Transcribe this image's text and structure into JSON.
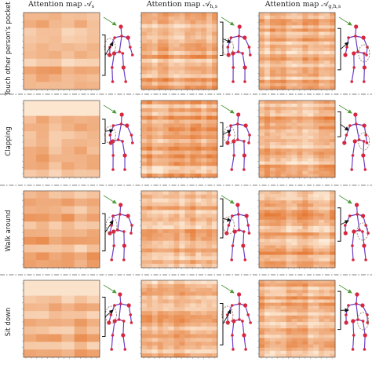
{
  "headers": [
    {
      "prefix": "Attention map ",
      "symbol": "𝒜",
      "sub": "s"
    },
    {
      "prefix": "Attention map ",
      "symbol": "𝒜",
      "sub": "h,s"
    },
    {
      "prefix": "Attention map ",
      "symbol": "𝒜",
      "sub": "g,h,s"
    }
  ],
  "rows": [
    {
      "label": "Touch other person's pocket"
    },
    {
      "label": "Clapping"
    },
    {
      "label": "Walk around"
    },
    {
      "label": "Sit down"
    }
  ],
  "colors": {
    "heat_low": "#fdecd9",
    "heat_high": "#e26a1e",
    "skeleton_bone": "#6a3fc4",
    "skeleton_joint": "#d7263d",
    "bracket": "#111111",
    "green_arrow": "#4f9a3a",
    "dashed_region": "#8a6a5a"
  }
}
